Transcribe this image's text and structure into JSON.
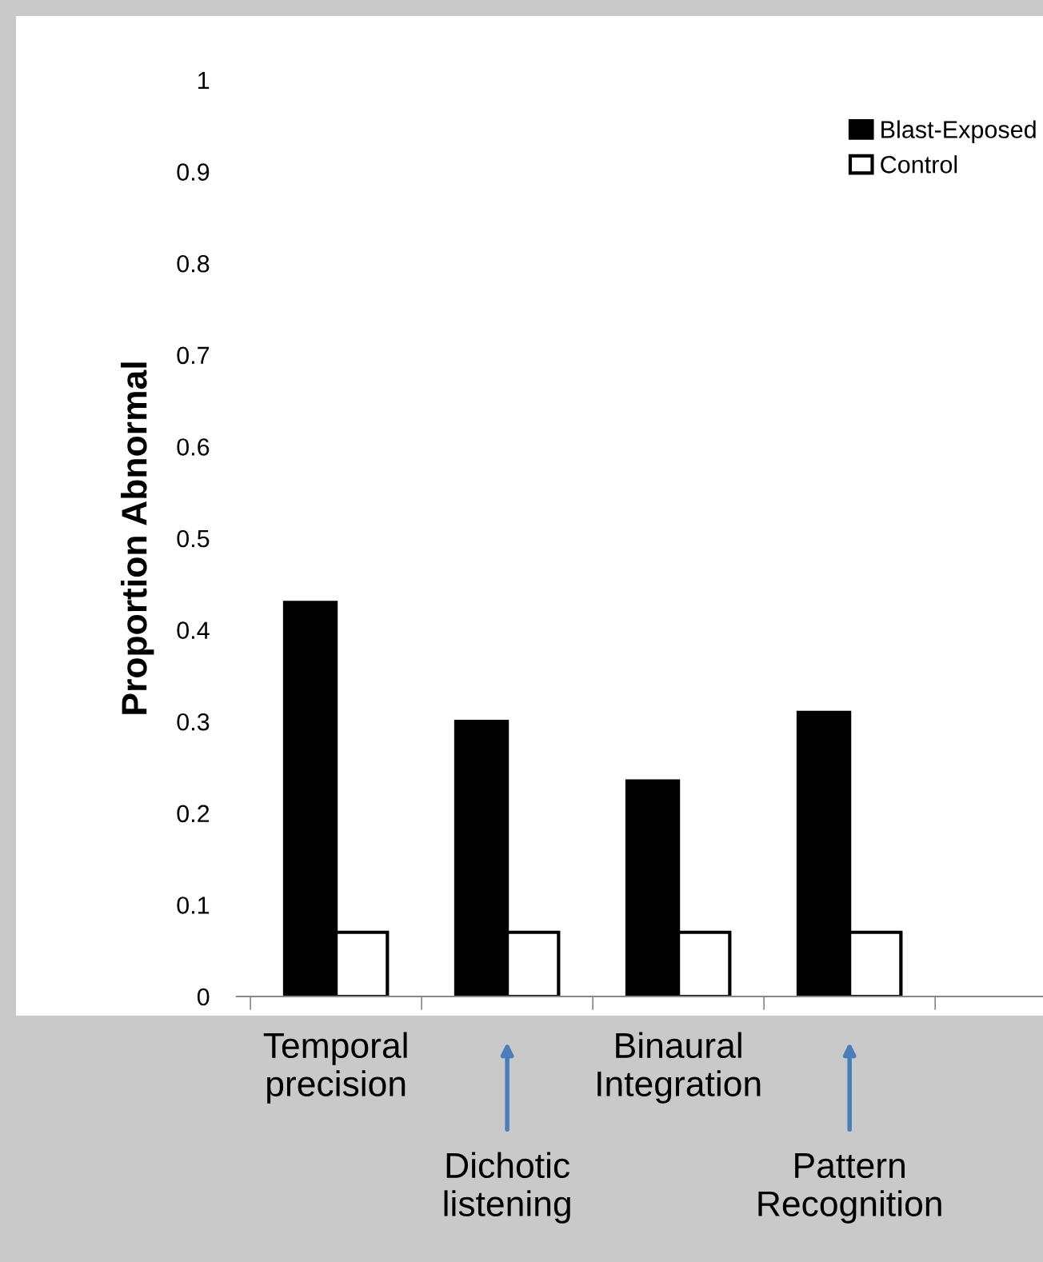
{
  "chart_data": {
    "type": "bar",
    "ylabel": "Proportion Abnormal",
    "categories": [
      "Temporal\nprecision",
      "Dichotic\nlistening",
      "Binaural\nIntegration",
      "Pattern\nRecognition"
    ],
    "series": [
      {
        "name": "Blast-Exposed",
        "color": "#000000",
        "values": [
          0.43,
          0.3,
          0.235,
          0.31
        ]
      },
      {
        "name": "Control",
        "color": "#ffffff",
        "values": [
          0.07,
          0.07,
          0.07,
          0.07
        ]
      }
    ],
    "ylim": [
      0,
      1
    ],
    "yticks": [
      {
        "value": 0,
        "label": "0"
      },
      0.1,
      0.2,
      0.3,
      0.4,
      0.5,
      0.6,
      0.7,
      0.8,
      0.9,
      {
        "value": 1,
        "label": "1"
      }
    ],
    "legend": "top right",
    "grid": false
  }
}
